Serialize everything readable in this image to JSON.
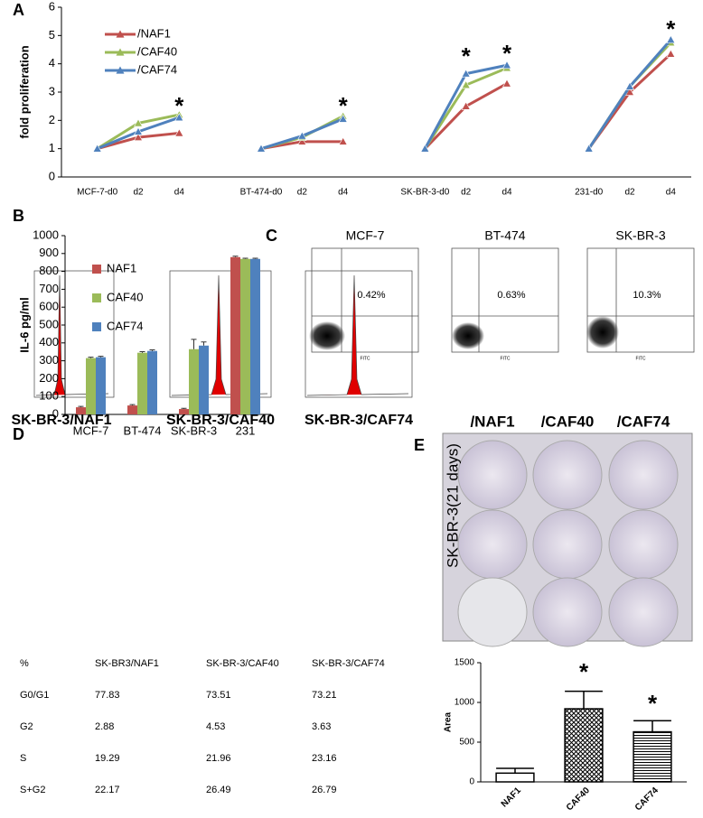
{
  "panels": [
    "A",
    "B",
    "C",
    "D",
    "E"
  ],
  "chart_data": [
    {
      "type": "line",
      "ylabel": "fold proliferation",
      "categories": [
        "MCF-7-d0",
        "d2",
        "d4",
        null,
        "BT-474-d0",
        "d2",
        "d4",
        null,
        "SK-BR-3-d0",
        "d2",
        "d4",
        null,
        "231-d0",
        "d2",
        "d4"
      ],
      "series": [
        {
          "name": "/NAF1",
          "color": "#c0504d",
          "values": [
            1,
            1.4,
            1.55,
            null,
            1,
            1.25,
            1.25,
            null,
            1,
            2.5,
            3.3,
            null,
            1,
            3.0,
            4.35
          ]
        },
        {
          "name": "/CAF40",
          "color": "#9bbb59",
          "values": [
            1,
            1.9,
            2.2,
            null,
            1,
            1.4,
            2.15,
            null,
            1,
            3.25,
            3.85,
            null,
            1,
            3.2,
            4.75
          ]
        },
        {
          "name": "/CAF74",
          "color": "#4f81bd",
          "values": [
            1,
            1.6,
            2.1,
            null,
            1,
            1.45,
            2.05,
            null,
            1,
            3.65,
            3.95,
            null,
            1,
            3.2,
            4.85
          ]
        }
      ],
      "ylim": [
        0,
        6
      ],
      "yticks": [
        0,
        1,
        2,
        3,
        4,
        5,
        6
      ],
      "legend": "upper left",
      "annotations": [
        {
          "x": 2,
          "y": 2.65,
          "text": "*"
        },
        {
          "x": 6,
          "y": 2.65,
          "text": "*"
        },
        {
          "x": 9,
          "y": 4.4,
          "text": "*"
        },
        {
          "x": 10,
          "y": 4.5,
          "text": "*"
        },
        {
          "x": 14,
          "y": 5.35,
          "text": "*"
        }
      ]
    },
    {
      "type": "bar",
      "ylabel": "IL-6 pg/ml",
      "categories": [
        "MCF-7",
        "BT-474",
        "SK-BR-3",
        "231"
      ],
      "series": [
        {
          "name": "NAF1",
          "color": "#c0504d",
          "values": [
            40,
            50,
            30,
            880
          ],
          "errors": [
            5,
            5,
            4,
            5
          ]
        },
        {
          "name": "CAF40",
          "color": "#9bbb59",
          "values": [
            315,
            345,
            365,
            870
          ],
          "errors": [
            5,
            6,
            55,
            4
          ]
        },
        {
          "name": "CAF74",
          "color": "#4f81bd",
          "values": [
            320,
            355,
            385,
            870
          ],
          "errors": [
            5,
            6,
            20,
            4
          ]
        }
      ],
      "ylim": [
        0,
        1000
      ],
      "yticks": [
        0,
        100,
        200,
        300,
        400,
        500,
        600,
        700,
        800,
        900,
        1000
      ],
      "legend": "upper left"
    },
    {
      "type": "bar",
      "ylabel": "Area",
      "categories": [
        "NAF1",
        "CAF40",
        "CAF74"
      ],
      "values": [
        110,
        920,
        630
      ],
      "errors": [
        60,
        220,
        140
      ],
      "fills": [
        "plain",
        "crosshatch",
        "horizontal"
      ],
      "ylim": [
        0,
        1500
      ],
      "yticks": [
        0,
        500,
        1000,
        1500
      ],
      "annotations": [
        {
          "x": 1,
          "y": 1430,
          "text": "*"
        },
        {
          "x": 2,
          "y": 1035,
          "text": "*"
        }
      ]
    }
  ],
  "flow": {
    "samples": [
      {
        "label": "MCF-7",
        "percent": "0.42%"
      },
      {
        "label": "BT-474",
        "percent": "0.63%"
      },
      {
        "label": "SK-BR-3",
        "percent": "10.3%"
      }
    ],
    "xlabel": "FITC"
  },
  "cell_cycle": {
    "labels": [
      "SK-BR-3/NAF1",
      "SK-BR-3/CAF40",
      "SK-BR-3/CAF74"
    ]
  },
  "table": {
    "header": [
      "%",
      "SK-BR3/NAF1",
      "SK-BR-3/CAF40",
      "SK-BR-3/CAF74"
    ],
    "rows": [
      [
        "G0/G1",
        "77.83",
        "73.51",
        "73.21"
      ],
      [
        "G2",
        "2.88",
        "4.53",
        "3.63"
      ],
      [
        "S",
        "19.29",
        "21.96",
        "23.16"
      ],
      [
        "S+G2",
        "22.17",
        "26.49",
        "26.79"
      ]
    ]
  },
  "colony": {
    "label": "SK-BR-3(21 days)",
    "columns": [
      "/NAF1",
      "/CAF40",
      "/CAF74"
    ]
  }
}
